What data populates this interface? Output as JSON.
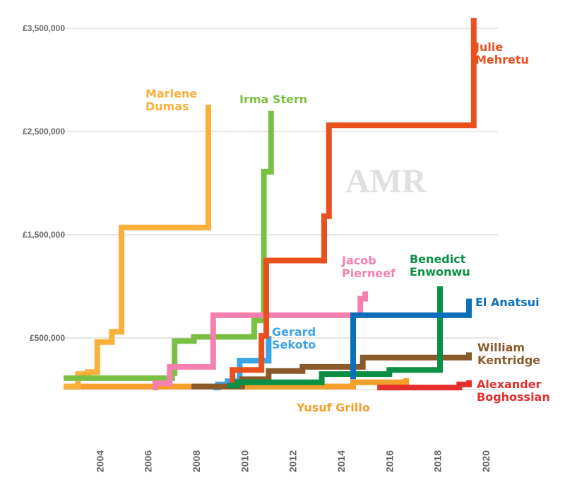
{
  "watermark": "AMR",
  "chart_data": {
    "type": "line",
    "step": true,
    "ylim": [
      0,
      3500000
    ],
    "xlim": [
      2002.5,
      2020.5
    ],
    "y_ticks": [
      {
        "value": 500000,
        "label": "£500,000"
      },
      {
        "value": 1500000,
        "label": "£1,500,000"
      },
      {
        "value": 2500000,
        "label": "£2,500,000"
      },
      {
        "value": 3500000,
        "label": "£3,500,000"
      }
    ],
    "x_ticks": [
      {
        "value": 2004,
        "label": "2004"
      },
      {
        "value": 2006,
        "label": "2006"
      },
      {
        "value": 2008,
        "label": "2008"
      },
      {
        "value": 2010,
        "label": "2010"
      },
      {
        "value": 2012,
        "label": "2012"
      },
      {
        "value": 2014,
        "label": "2014"
      },
      {
        "value": 2016,
        "label": "2016"
      },
      {
        "value": 2018,
        "label": "2018"
      },
      {
        "value": 2020,
        "label": "2020"
      }
    ],
    "grid": true,
    "series": [
      {
        "name": "Yusuf Grillo",
        "label_lines": [
          "Yusuf Grillo"
        ],
        "color": "#f5a02a",
        "points": [
          [
            2002.5,
            30000
          ],
          [
            2003.1,
            30000
          ],
          [
            2003.1,
            30000
          ],
          [
            2009.9,
            30000
          ],
          [
            2009.9,
            30000
          ],
          [
            2014.5,
            30000
          ],
          [
            2014.5,
            70000
          ],
          [
            2016.7,
            70000
          ],
          [
            2016.7,
            110000
          ]
        ]
      },
      {
        "name": "Marlene Dumas",
        "label_lines": [
          "Marlene",
          "Dumas"
        ],
        "color": "#fbb03b",
        "points": [
          [
            2002.5,
            30000
          ],
          [
            2003.1,
            30000
          ],
          [
            2003.1,
            150000
          ],
          [
            2003.5,
            150000
          ],
          [
            2003.5,
            170000
          ],
          [
            2003.9,
            170000
          ],
          [
            2003.9,
            460000
          ],
          [
            2004.5,
            460000
          ],
          [
            2004.5,
            560000
          ],
          [
            2004.9,
            560000
          ],
          [
            2004.9,
            1570000
          ],
          [
            2008.5,
            1570000
          ],
          [
            2008.5,
            2760000
          ]
        ]
      },
      {
        "name": "Irma Stern",
        "label_lines": [
          "Irma Stern"
        ],
        "color": "#7ac143",
        "points": [
          [
            2002.5,
            110000
          ],
          [
            2007.0,
            110000
          ],
          [
            2007.0,
            160000
          ],
          [
            2007.1,
            160000
          ],
          [
            2007.1,
            470000
          ],
          [
            2007.9,
            470000
          ],
          [
            2007.9,
            510000
          ],
          [
            2010.4,
            510000
          ],
          [
            2010.4,
            670000
          ],
          [
            2010.8,
            670000
          ],
          [
            2010.8,
            2110000
          ],
          [
            2011.1,
            2110000
          ],
          [
            2011.1,
            2700000
          ]
        ]
      },
      {
        "name": "Jacob Pierneef",
        "label_lines": [
          "Jacob",
          "Pierneef"
        ],
        "color": "#f580b0",
        "points": [
          [
            2006.2,
            20000
          ],
          [
            2006.3,
            20000
          ],
          [
            2006.3,
            60000
          ],
          [
            2006.9,
            60000
          ],
          [
            2006.9,
            220000
          ],
          [
            2008.7,
            220000
          ],
          [
            2008.7,
            720000
          ],
          [
            2014.8,
            720000
          ],
          [
            2014.8,
            880000
          ],
          [
            2015.0,
            880000
          ],
          [
            2015.0,
            950000
          ]
        ]
      },
      {
        "name": "Gerard Sekoto",
        "label_lines": [
          "Gerard",
          "Sekoto"
        ],
        "color": "#3ca3e8",
        "points": [
          [
            2008.7,
            20000
          ],
          [
            2008.9,
            20000
          ],
          [
            2008.9,
            50000
          ],
          [
            2009.3,
            50000
          ],
          [
            2009.3,
            80000
          ],
          [
            2009.8,
            80000
          ],
          [
            2009.8,
            280000
          ],
          [
            2011.0,
            280000
          ],
          [
            2011.0,
            520000
          ]
        ]
      },
      {
        "name": "Julie Mehretu",
        "label_lines": [
          "Julie",
          "Mehretu"
        ],
        "color": "#e8501e",
        "points": [
          [
            2009.3,
            30000
          ],
          [
            2009.5,
            30000
          ],
          [
            2009.5,
            190000
          ],
          [
            2010.7,
            190000
          ],
          [
            2010.7,
            520000
          ],
          [
            2010.9,
            520000
          ],
          [
            2010.9,
            1250000
          ],
          [
            2013.3,
            1250000
          ],
          [
            2013.3,
            1680000
          ],
          [
            2013.5,
            1680000
          ],
          [
            2013.5,
            2560000
          ],
          [
            2019.5,
            2560000
          ],
          [
            2019.5,
            3600000
          ]
        ]
      },
      {
        "name": "William Kentridge",
        "label_lines": [
          "William",
          "Kentridge"
        ],
        "color": "#8b5a2b",
        "points": [
          [
            2007.8,
            30000
          ],
          [
            2009.9,
            30000
          ],
          [
            2009.9,
            100000
          ],
          [
            2011.0,
            100000
          ],
          [
            2011.0,
            180000
          ],
          [
            2012.4,
            180000
          ],
          [
            2012.4,
            220000
          ],
          [
            2014.9,
            220000
          ],
          [
            2014.9,
            310000
          ],
          [
            2019.3,
            310000
          ],
          [
            2019.3,
            360000
          ]
        ]
      },
      {
        "name": "Benedict Enwonwu",
        "label_lines": [
          "Benedict",
          "Enwonwu"
        ],
        "color": "#0a8f45",
        "points": [
          [
            2009.3,
            40000
          ],
          [
            2009.7,
            40000
          ],
          [
            2009.7,
            70000
          ],
          [
            2013.2,
            70000
          ],
          [
            2013.2,
            150000
          ],
          [
            2016.0,
            150000
          ],
          [
            2016.0,
            190000
          ],
          [
            2018.1,
            190000
          ],
          [
            2018.1,
            1000000
          ]
        ]
      },
      {
        "name": "El Anatsui",
        "label_lines": [
          "El Anatsui"
        ],
        "color": "#0b6fba",
        "points": [
          [
            2014.5,
            100000
          ],
          [
            2014.5,
            720000
          ],
          [
            2019.3,
            720000
          ],
          [
            2019.3,
            880000
          ]
        ]
      },
      {
        "name": "Alexander Boghossian",
        "label_lines": [
          "Alexander",
          "Boghossian"
        ],
        "color": "#e62e2d",
        "points": [
          [
            2015.5,
            20000
          ],
          [
            2018.9,
            20000
          ],
          [
            2018.9,
            50000
          ],
          [
            2019.3,
            50000
          ],
          [
            2019.3,
            90000
          ]
        ]
      }
    ]
  }
}
